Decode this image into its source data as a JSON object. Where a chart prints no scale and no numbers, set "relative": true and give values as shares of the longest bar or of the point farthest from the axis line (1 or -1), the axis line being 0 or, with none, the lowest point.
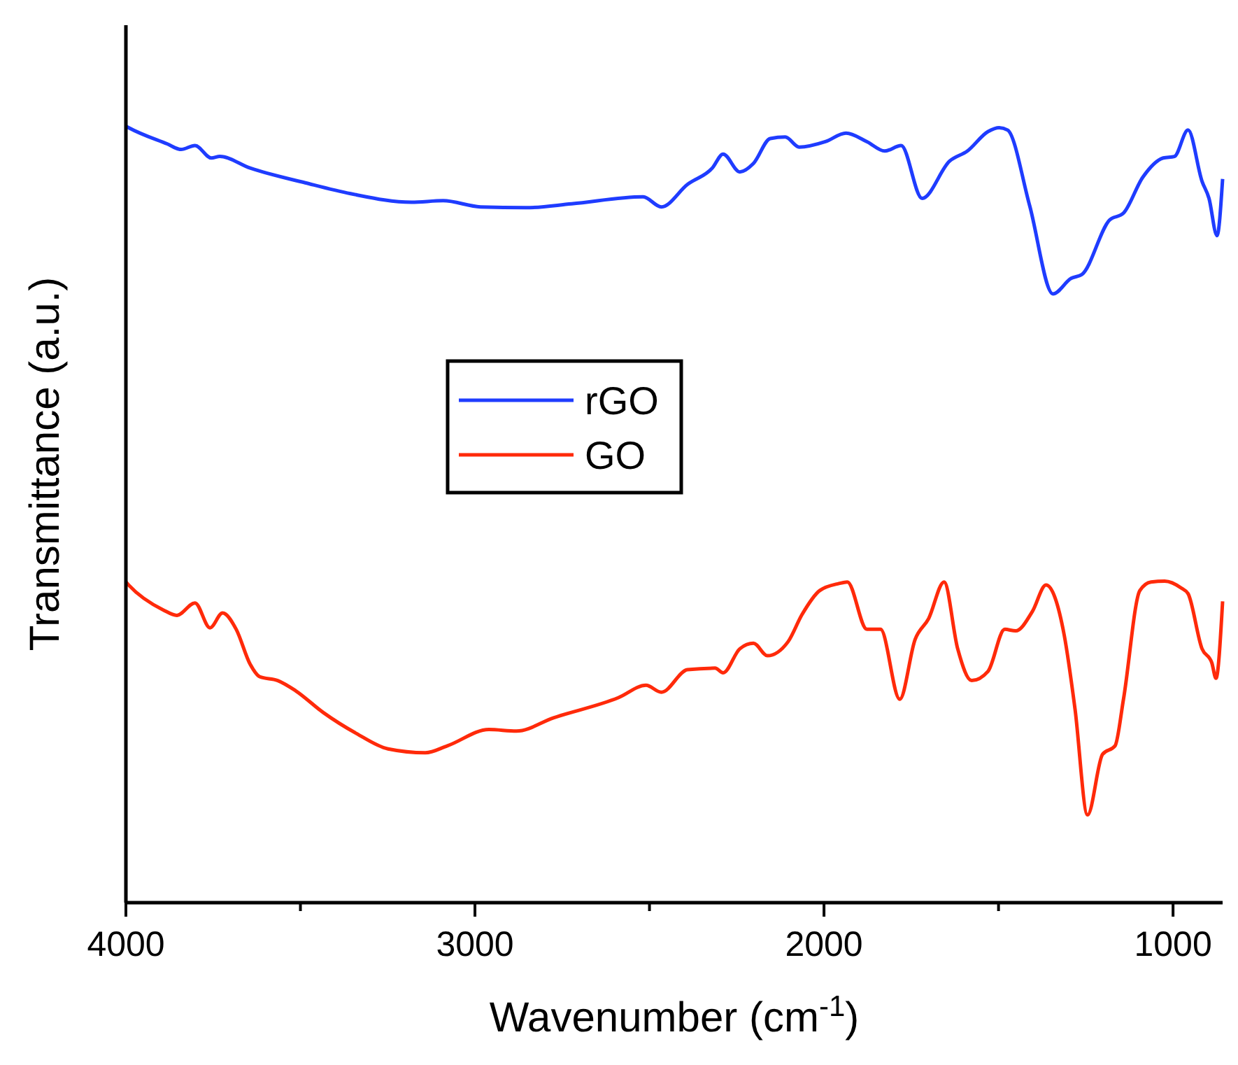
{
  "chart_data": {
    "type": "line",
    "relative": true,
    "xlabel": "Wavenumber (cm$^{-1}$)",
    "ylabel": "Transmittance (a.u.)",
    "xlim": [
      4000,
      858
    ],
    "xticks": [
      4000,
      {
        "value": 3500,
        "label": null
      },
      3000,
      {
        "value": 2500,
        "label": null
      },
      2000,
      {
        "value": 1500,
        "label": null
      },
      1000
    ],
    "legend": "center left",
    "tick_labels": "x",
    "series": [
      {
        "name": "rGO",
        "color": "#1f3cff",
        "x": [
          4000,
          3992,
          3881,
          3842,
          3802,
          3755,
          3731,
          3644,
          3486,
          3356,
          3182,
          3091,
          2984,
          2854,
          2723,
          2518,
          2466,
          2391,
          2320,
          2289,
          2241,
          2202,
          2154,
          2111,
          2071,
          1996,
          1937,
          1877,
          1826,
          1779,
          1719,
          1640,
          1589,
          1530,
          1498,
          1474,
          1411,
          1344,
          1292,
          1261,
          1182,
          1142,
          1087,
          1028,
          996,
          957,
          917,
          897,
          874,
          858
        ],
        "values": [
          1.0,
          0.998,
          0.977,
          0.97,
          0.975,
          0.959,
          0.961,
          0.946,
          0.927,
          0.913,
          0.902,
          0.904,
          0.896,
          0.895,
          0.9,
          0.909,
          0.896,
          0.925,
          0.946,
          0.964,
          0.941,
          0.952,
          0.984,
          0.986,
          0.973,
          0.98,
          0.991,
          0.98,
          0.968,
          0.975,
          0.907,
          0.955,
          0.968,
          0.993,
          0.998,
          0.995,
          0.898,
          0.784,
          0.804,
          0.809,
          0.879,
          0.888,
          0.934,
          0.959,
          0.961,
          0.995,
          0.929,
          0.907,
          0.859,
          0.932
        ]
      },
      {
        "name": "GO",
        "color": "#ff2a0a",
        "x": [
          4000,
          3992,
          3893,
          3854,
          3802,
          3759,
          3723,
          3684,
          3644,
          3617,
          3565,
          3514,
          3435,
          3340,
          3249,
          3142,
          3079,
          2960,
          2881,
          2775,
          2589,
          2510,
          2466,
          2391,
          2312,
          2289,
          2241,
          2202,
          2162,
          2103,
          2063,
          2012,
          1957,
          1933,
          1877,
          1838,
          1783,
          1739,
          1700,
          1656,
          1617,
          1577,
          1530,
          1482,
          1451,
          1403,
          1364,
          1312,
          1281,
          1245,
          1202,
          1166,
          1142,
          1095,
          1063,
          1024,
          976,
          957,
          917,
          889,
          877,
          858
        ],
        "values": [
          0.413,
          0.409,
          0.377,
          0.37,
          0.386,
          0.354,
          0.373,
          0.352,
          0.307,
          0.291,
          0.286,
          0.273,
          0.245,
          0.218,
          0.198,
          0.193,
          0.202,
          0.223,
          0.221,
          0.238,
          0.264,
          0.28,
          0.271,
          0.3,
          0.302,
          0.296,
          0.327,
          0.334,
          0.318,
          0.336,
          0.371,
          0.402,
          0.411,
          0.413,
          0.352,
          0.352,
          0.262,
          0.339,
          0.366,
          0.413,
          0.327,
          0.286,
          0.298,
          0.352,
          0.35,
          0.375,
          0.409,
          0.345,
          0.25,
          0.113,
          0.191,
          0.202,
          0.262,
          0.402,
          0.413,
          0.414,
          0.405,
          0.398,
          0.327,
          0.309,
          0.289,
          0.388
        ]
      }
    ]
  }
}
